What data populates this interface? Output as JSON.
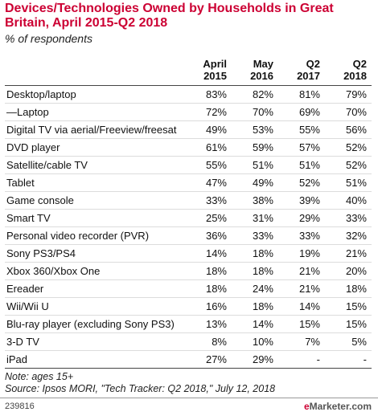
{
  "chart_data": {
    "type": "table",
    "title": "Devices/Technologies Owned by Households in Great Britain, April 2015-Q2 2018",
    "subtitle": "% of respondents",
    "columns": [
      {
        "line1": "April",
        "line2": "2015"
      },
      {
        "line1": "May",
        "line2": "2016"
      },
      {
        "line1": "Q2",
        "line2": "2017"
      },
      {
        "line1": "Q2",
        "line2": "2018"
      }
    ],
    "rows": [
      {
        "label": "Desktop/laptop",
        "values": [
          "83%",
          "82%",
          "81%",
          "79%"
        ]
      },
      {
        "label": "—Laptop",
        "values": [
          "72%",
          "70%",
          "69%",
          "70%"
        ]
      },
      {
        "label": "Digital TV via aerial/Freeview/freesat",
        "values": [
          "49%",
          "53%",
          "55%",
          "56%"
        ]
      },
      {
        "label": "DVD player",
        "values": [
          "61%",
          "59%",
          "57%",
          "52%"
        ]
      },
      {
        "label": "Satellite/cable TV",
        "values": [
          "55%",
          "51%",
          "51%",
          "52%"
        ]
      },
      {
        "label": "Tablet",
        "values": [
          "47%",
          "49%",
          "52%",
          "51%"
        ]
      },
      {
        "label": "Game console",
        "values": [
          "33%",
          "38%",
          "39%",
          "40%"
        ]
      },
      {
        "label": "Smart TV",
        "values": [
          "25%",
          "31%",
          "29%",
          "33%"
        ]
      },
      {
        "label": "Personal video recorder (PVR)",
        "values": [
          "36%",
          "33%",
          "33%",
          "32%"
        ]
      },
      {
        "label": "Sony PS3/PS4",
        "values": [
          "14%",
          "18%",
          "19%",
          "21%"
        ]
      },
      {
        "label": "Xbox 360/Xbox One",
        "values": [
          "18%",
          "18%",
          "21%",
          "20%"
        ]
      },
      {
        "label": "Ereader",
        "values": [
          "18%",
          "24%",
          "21%",
          "18%"
        ]
      },
      {
        "label": "Wii/Wii U",
        "values": [
          "16%",
          "18%",
          "14%",
          "15%"
        ]
      },
      {
        "label": "Blu-ray player (excluding Sony PS3)",
        "values": [
          "13%",
          "14%",
          "15%",
          "15%"
        ]
      },
      {
        "label": "3-D TV",
        "values": [
          "8%",
          "10%",
          "7%",
          "5%"
        ]
      },
      {
        "label": "iPad",
        "values": [
          "27%",
          "29%",
          "-",
          "-"
        ]
      }
    ],
    "note": "Note: ages 15+",
    "source": "Source: Ipsos MORI, \"Tech Tracker: Q2 2018,\" July 12, 2018",
    "chart_id": "239816",
    "brand": {
      "prefix": "e",
      "rest": "Marketer.com"
    }
  }
}
